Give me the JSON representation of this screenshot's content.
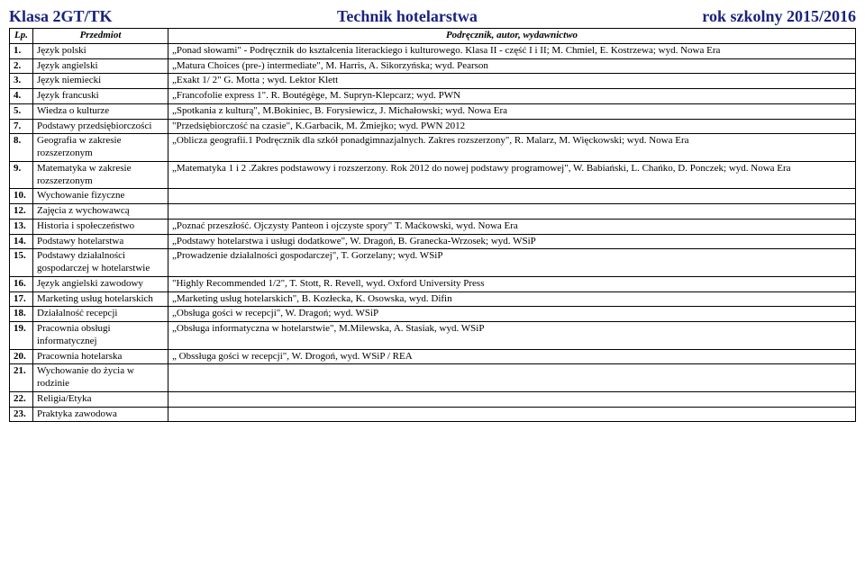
{
  "header": {
    "left": "Klasa  2GT/TK",
    "center": "Technik hotelarstwa",
    "right": "rok szkolny 2015/2016",
    "color": "#1a237e"
  },
  "columns": {
    "lp": "Lp.",
    "subject": "Przedmiot",
    "book": "Podręcznik, autor, wydawnictwo"
  },
  "rows": [
    {
      "lp": "1.",
      "subject": "Język polski",
      "book": "„Ponad słowami\" - Podręcznik do kształcenia literackiego i kulturowego. Klasa II - część I i II;  M. Chmiel, E. Kostrzewa;  wyd. Nowa Era"
    },
    {
      "lp": "2.",
      "subject": "Język angielski",
      "book": "„Matura Choices (pre-) intermediate\",  M. Harris, A. Sikorzyńska; wyd. Pearson"
    },
    {
      "lp": "3.",
      "subject": "Język niemiecki",
      "book": "„Exakt  1/ 2\"  G. Motta ; wyd. Lektor Klett"
    },
    {
      "lp": "4.",
      "subject": "Język francuski",
      "book": "„Francofolie express 1\". R. Boutégège, M. Supryn-Klepcarz; wyd. PWN"
    },
    {
      "lp": "5.",
      "subject": "Wiedza o kulturze",
      "book": "„Spotkania z kulturą\", M.Bokiniec, B. Forysiewicz, J. Michałowski; wyd. Nowa Era"
    },
    {
      "lp": "7.",
      "subject": "Podstawy przedsiębiorczości",
      "book": "\"Przedsiębiorczość  na czasie\",  K.Garbacik, M. Żmiejko; wyd. PWN 2012"
    },
    {
      "lp": "8.",
      "subject": "Geografia  w zakresie rozszerzonym",
      "book": "„Oblicza geografii.1 Podręcznik dla szkół ponadgimnazjalnych. Zakres rozszerzony\", R. Malarz, M. Więckowski; wyd. Nowa Era"
    },
    {
      "lp": "9.",
      "subject": "Matematyka w zakresie rozszerzonym",
      "book": "„Matematyka 1 i 2 .Zakres podstawowy i rozszerzony. Rok 2012 do nowej podstawy programowej\", W. Babiański, L. Chańko, D. Ponczek; wyd. Nowa Era"
    },
    {
      "lp": "10.",
      "subject": "Wychowanie fizyczne",
      "book": ""
    },
    {
      "lp": "12.",
      "subject": "Zajęcia z wychowawcą",
      "book": ""
    },
    {
      "lp": "13.",
      "subject": "Historia i społeczeństwo",
      "book": "„Poznać przeszłość. Ojczysty Panteon i ojczyste spory\" T. Maćkowski, wyd. Nowa Era"
    },
    {
      "lp": "14.",
      "subject": "Podstawy hotelarstwa",
      "book": "„Podstawy hotelarstwa i usługi dodatkowe\", W. Dragoń, B. Granecka-Wrzosek; wyd.  WSiP"
    },
    {
      "lp": "15.",
      "subject": "Podstawy działalności gospodarczej w hotelarstwie",
      "book": "„Prowadzenie działalności gospodarczej\", T. Gorzelany; wyd. WSiP"
    },
    {
      "lp": "16.",
      "subject": "Język angielski zawodowy",
      "book": "\"Highly Recommended 1/2\", T. Stott, R. Revell, wyd. Oxford University Press"
    },
    {
      "lp": "17.",
      "subject": "Marketing usług hotelarskich",
      "book": "„Marketing usług hotelarskich\", B. Kozłecka, K. Osowska, wyd. Difin"
    },
    {
      "lp": "18.",
      "subject": "Działalność recepcji",
      "book": " „Obsługa gości w recepcji\", W. Dragoń; wyd. WSiP"
    },
    {
      "lp": "19.",
      "subject": "Pracownia obsługi informatycznej",
      "book": "„Obsługa informatyczna w hotelarstwie\", M.Milewska, A. Stasiak, wyd. WSiP"
    },
    {
      "lp": "20.",
      "subject": "Pracownia hotelarska",
      "book": "„ Obssługa gości w recepcji\", W. Drogoń, wyd. WSiP / REA"
    },
    {
      "lp": "21.",
      "subject": "Wychowanie do życia w rodzinie",
      "book": ""
    },
    {
      "lp": "22.",
      "subject": "Religia/Etyka",
      "book": ""
    },
    {
      "lp": "23.",
      "subject": "Praktyka zawodowa",
      "book": ""
    }
  ]
}
